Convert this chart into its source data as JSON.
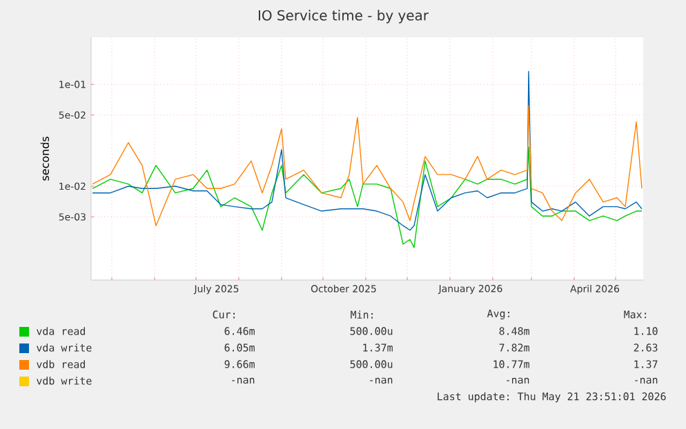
{
  "chart_data": {
    "type": "line",
    "title": "IO Service time - by year",
    "ylabel": "seconds",
    "log": true,
    "grid": true,
    "legend": "bottom",
    "marker": "none",
    "line_style": "solid",
    "ylim": [
      0.0012,
      0.29
    ],
    "yticks": [
      {
        "value": 0.005,
        "label": "5e-03"
      },
      {
        "value": 0.01,
        "label": "1e-02"
      },
      {
        "value": 0.05,
        "label": "5e-02"
      },
      {
        "value": 0.1,
        "label": "1e-01"
      }
    ],
    "xlim": [
      "2025-04-16",
      "2026-05-21"
    ],
    "xticks": [
      {
        "value": "2025-05-01",
        "label": null
      },
      {
        "value": "2025-06-01",
        "label": null
      },
      {
        "value": "2025-07-01",
        "label": null
      },
      {
        "value": "2025-07-16",
        "label": "July 2025"
      },
      {
        "value": "2025-08-01",
        "label": null
      },
      {
        "value": "2025-09-01",
        "label": null
      },
      {
        "value": "2025-10-01",
        "label": null
      },
      {
        "value": "2025-10-16",
        "label": "October 2025"
      },
      {
        "value": "2025-11-01",
        "label": null
      },
      {
        "value": "2025-12-01",
        "label": null
      },
      {
        "value": "2026-01-01",
        "label": null
      },
      {
        "value": "2026-01-16",
        "label": "January 2026"
      },
      {
        "value": "2026-02-01",
        "label": null
      },
      {
        "value": "2026-03-01",
        "label": null
      },
      {
        "value": "2026-04-01",
        "label": null
      },
      {
        "value": "2026-04-16",
        "label": "April 2026"
      },
      {
        "value": "2026-05-01",
        "label": null
      }
    ],
    "x": [
      "2025-04-17",
      "2025-04-30",
      "2025-05-13",
      "2025-05-23",
      "2025-06-02",
      "2025-06-16",
      "2025-06-29",
      "2025-07-09",
      "2025-07-19",
      "2025-07-29",
      "2025-08-10",
      "2025-08-18",
      "2025-08-25",
      "2025-09-01",
      "2025-09-04",
      "2025-09-17",
      "2025-09-30",
      "2025-10-14",
      "2025-10-20",
      "2025-10-26",
      "2025-10-30",
      "2025-11-09",
      "2025-11-19",
      "2025-11-28",
      "2025-12-03",
      "2025-12-06",
      "2025-12-14",
      "2025-12-23",
      "2026-01-02",
      "2026-01-12",
      "2026-01-21",
      "2026-01-28",
      "2026-02-07",
      "2026-02-17",
      "2026-02-26",
      "2026-02-27",
      "2026-03-01",
      "2026-03-09",
      "2026-03-16",
      "2026-03-23",
      "2026-04-02",
      "2026-04-12",
      "2026-04-22",
      "2026-05-02",
      "2026-05-08",
      "2026-05-16",
      "2026-05-20"
    ],
    "series": [
      {
        "name": "vda read",
        "color": "#00cc00",
        "values": [
          0.0095,
          0.0117,
          0.0105,
          0.0086,
          0.016,
          0.0086,
          0.0095,
          0.0144,
          0.0063,
          0.0077,
          0.0063,
          0.0037,
          0.0086,
          0.016,
          0.0086,
          0.013,
          0.0086,
          0.0095,
          0.0117,
          0.0063,
          0.0105,
          0.0105,
          0.0095,
          0.0027,
          0.003,
          0.0025,
          0.0177,
          0.0063,
          0.0077,
          0.0117,
          0.0105,
          0.0117,
          0.0117,
          0.0105,
          0.0117,
          0.0242,
          0.0063,
          0.0051,
          0.0051,
          0.0057,
          0.0057,
          0.0046,
          0.0051,
          0.0046,
          0.0051,
          0.0057,
          0.0057
        ]
      },
      {
        "name": "vda write",
        "color": "#0066b3",
        "values": [
          0.0086,
          0.0086,
          0.01,
          0.0095,
          0.0095,
          0.01,
          0.009,
          0.009,
          0.0066,
          0.0063,
          0.006,
          0.006,
          0.007,
          0.0229,
          0.0077,
          0.0066,
          0.0057,
          0.006,
          0.006,
          0.006,
          0.006,
          0.0057,
          0.0051,
          0.0041,
          0.0037,
          0.0041,
          0.013,
          0.0057,
          0.0077,
          0.0086,
          0.009,
          0.0077,
          0.0086,
          0.0086,
          0.0095,
          0.134,
          0.007,
          0.0057,
          0.006,
          0.0057,
          0.007,
          0.0051,
          0.0063,
          0.0063,
          0.006,
          0.007,
          0.006
        ]
      },
      {
        "name": "vdb read",
        "color": "#ff8000",
        "values": [
          0.0105,
          0.013,
          0.0268,
          0.016,
          0.0041,
          0.0117,
          0.013,
          0.0095,
          0.0095,
          0.0105,
          0.0177,
          0.0086,
          0.016,
          0.0366,
          0.0117,
          0.0144,
          0.0086,
          0.0077,
          0.013,
          0.0474,
          0.0105,
          0.016,
          0.0095,
          0.007,
          0.0046,
          0.007,
          0.0196,
          0.013,
          0.013,
          0.0117,
          0.0196,
          0.0117,
          0.0144,
          0.013,
          0.0144,
          0.0614,
          0.0095,
          0.0086,
          0.0057,
          0.0046,
          0.0086,
          0.0117,
          0.007,
          0.0077,
          0.0063,
          0.0428,
          0.0095
        ]
      },
      {
        "name": "vdb write",
        "color": "#ffcc00",
        "values": [
          null,
          null,
          null,
          null,
          null,
          null,
          null,
          null,
          null,
          null,
          null,
          null,
          null,
          null,
          null,
          null,
          null,
          null,
          null,
          null,
          null,
          null,
          null,
          null,
          null,
          null,
          null,
          null,
          null,
          null,
          null,
          null,
          null,
          null,
          null,
          null,
          null,
          null,
          null,
          null,
          null,
          null,
          null,
          null,
          null,
          null,
          null
        ]
      }
    ],
    "annotations": [
      "Cur:",
      "Min:",
      "Avg:",
      "Max:",
      "6.46m",
      "500.00u",
      "8.48m",
      "1.10",
      "6.05m",
      "1.37m",
      "7.82m",
      "2.63",
      "9.66m",
      "500.00u",
      "10.77m",
      "1.37",
      "-nan",
      "-nan",
      "-nan",
      "-nan",
      "Last update: Thu May 21 23:51:01 2026"
    ]
  }
}
